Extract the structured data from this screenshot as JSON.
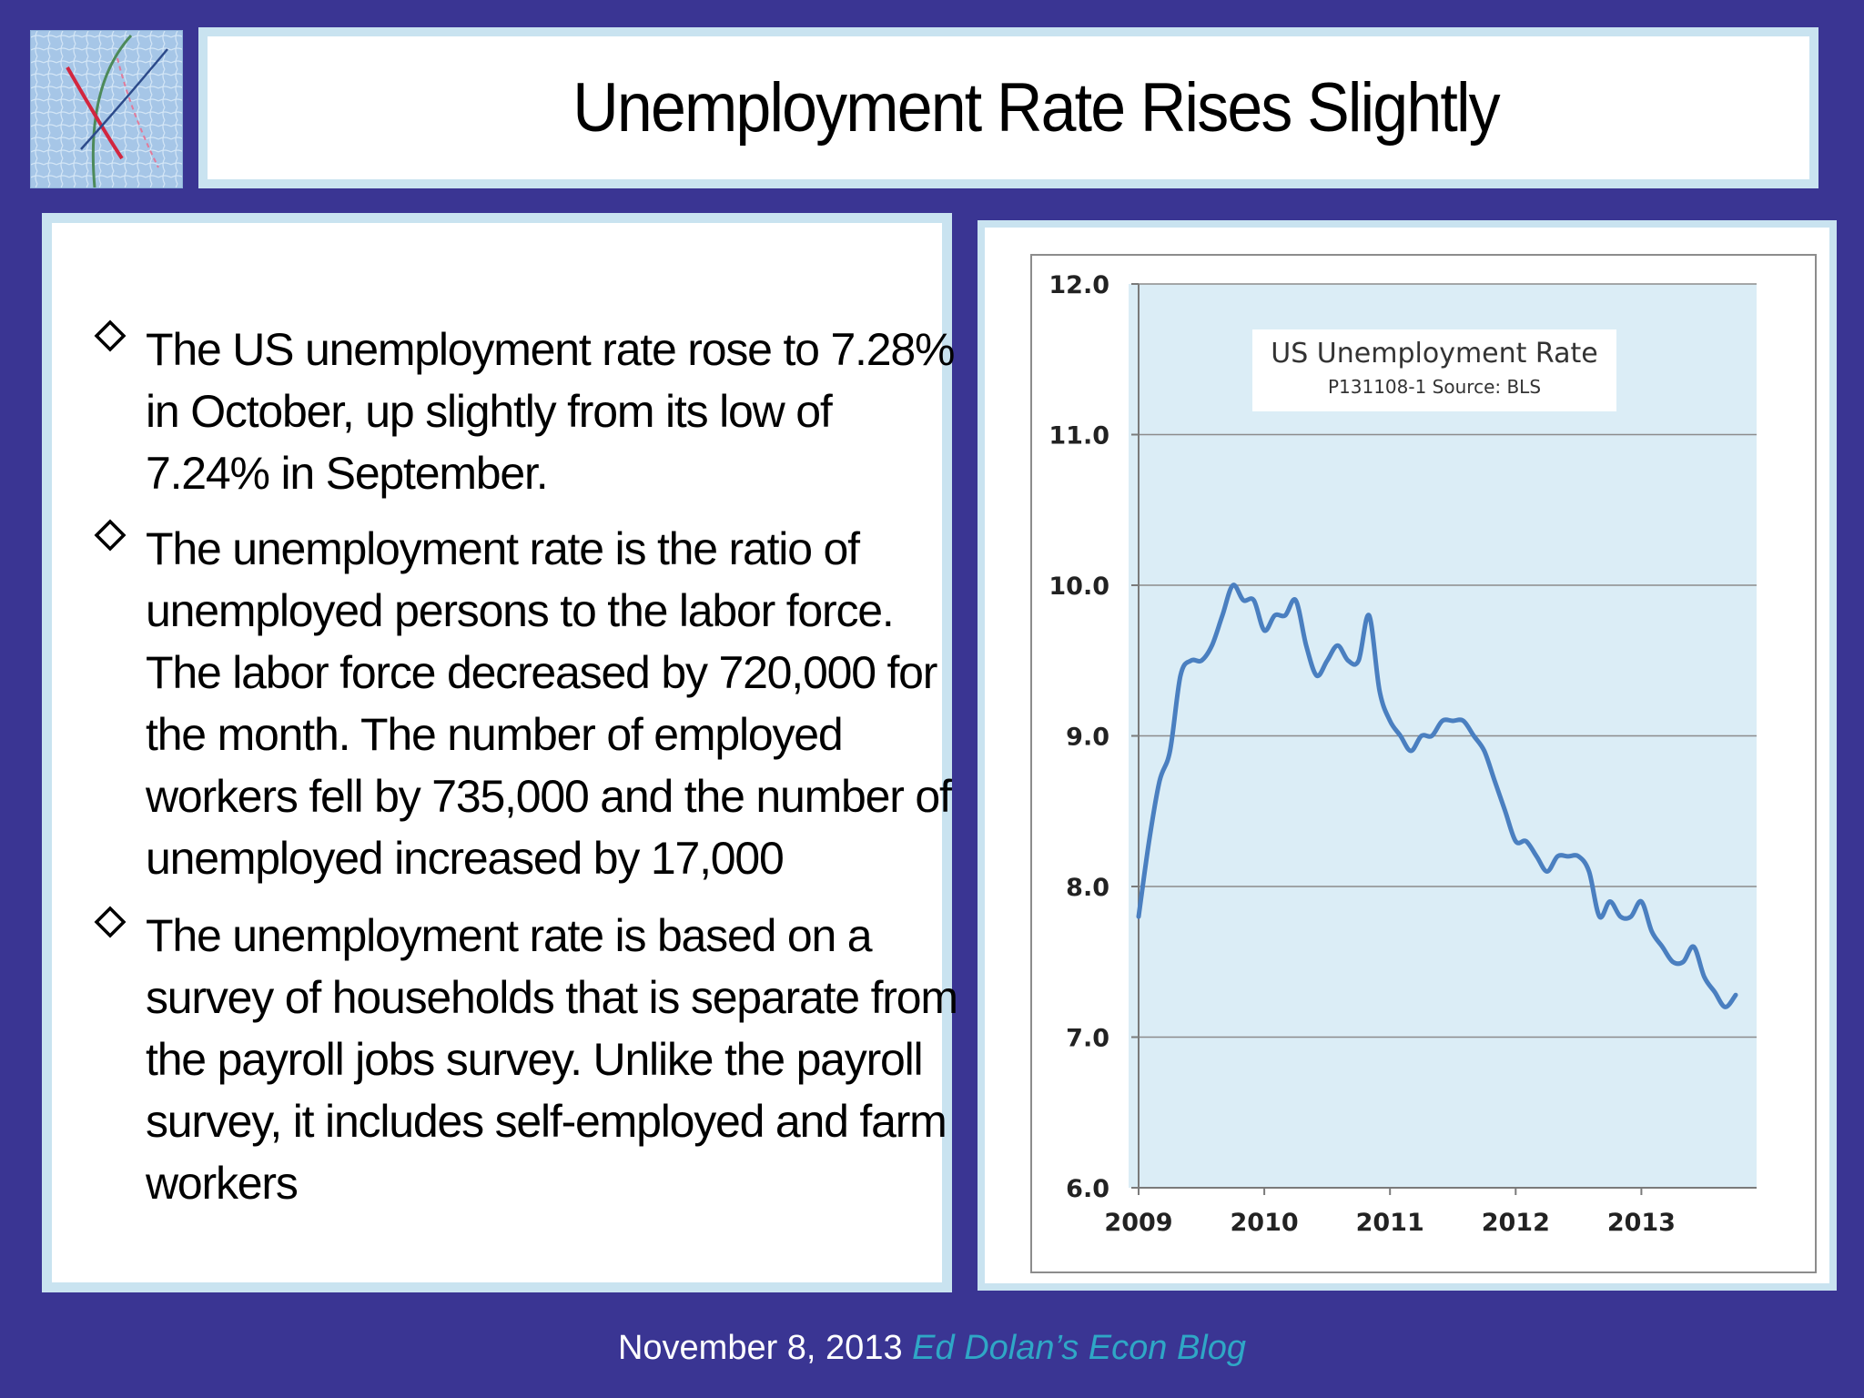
{
  "slide": {
    "title": "Unemployment Rate Rises Slightly",
    "logo_icon": "economics-chart-logo",
    "bullet_icon": "diamond-bullet-icon",
    "bullets": [
      {
        "text": "The US unemployment rate rose to 7.28% in October, up slightly from its low of 7.24% in September."
      },
      {
        "text": "The unemployment rate is the ratio of unemployed persons to the labor force. The labor force decreased by 720,000 for the month. The number of employed workers fell by 735,000 and the number of unemployed increased by 17,000"
      },
      {
        "text": "The unemployment rate is based on a survey of households that is separate from the payroll jobs survey. Unlike the payroll survey, it includes self-employed and farm workers"
      }
    ],
    "footer": {
      "date": "November 8, 2013",
      "blog": "Ed Dolan’s Econ Blog"
    }
  },
  "colors": {
    "background": "#3a3593",
    "panel_border": "#c9e3f0",
    "plot_area": "#dbedf6",
    "line": "#4a7fc0",
    "footer_blog": "#2fa7c6"
  },
  "chart_data": {
    "type": "line",
    "title": "US Unemployment  Rate",
    "subtitle": "P131108-1 Source: BLS",
    "legend_position": "top-center inside plot",
    "grid": true,
    "ylim": [
      6.0,
      12.0
    ],
    "yticks": [
      "6.0",
      "7.0",
      "8.0",
      "9.0",
      "10.0",
      "11.0",
      "12.0"
    ],
    "xlim": [
      2009.0,
      2013.9167
    ],
    "xticks": [
      "2009",
      "2010",
      "2011",
      "2012",
      "2013"
    ],
    "series": [
      {
        "name": "US Unemployment Rate",
        "x": [
          2009.0,
          2009.0833,
          2009.1667,
          2009.25,
          2009.3333,
          2009.4167,
          2009.5,
          2009.5833,
          2009.6667,
          2009.75,
          2009.8333,
          2009.9167,
          2010.0,
          2010.0833,
          2010.1667,
          2010.25,
          2010.3333,
          2010.4167,
          2010.5,
          2010.5833,
          2010.6667,
          2010.75,
          2010.8333,
          2010.9167,
          2011.0,
          2011.0833,
          2011.1667,
          2011.25,
          2011.3333,
          2011.4167,
          2011.5,
          2011.5833,
          2011.6667,
          2011.75,
          2011.8333,
          2011.9167,
          2012.0,
          2012.0833,
          2012.1667,
          2012.25,
          2012.3333,
          2012.4167,
          2012.5,
          2012.5833,
          2012.6667,
          2012.75,
          2012.8333,
          2012.9167,
          2013.0,
          2013.0833,
          2013.1667,
          2013.25,
          2013.3333,
          2013.4167,
          2013.5,
          2013.5833,
          2013.6667,
          2013.75
        ],
        "values": [
          7.8,
          8.3,
          8.7,
          8.9,
          9.4,
          9.5,
          9.5,
          9.6,
          9.8,
          10.0,
          9.9,
          9.9,
          9.7,
          9.8,
          9.8,
          9.9,
          9.6,
          9.4,
          9.5,
          9.6,
          9.5,
          9.5,
          9.8,
          9.3,
          9.1,
          9.0,
          8.9,
          9.0,
          9.0,
          9.1,
          9.1,
          9.1,
          9.0,
          8.9,
          8.7,
          8.5,
          8.3,
          8.3,
          8.2,
          8.1,
          8.2,
          8.2,
          8.2,
          8.1,
          7.8,
          7.9,
          7.8,
          7.8,
          7.9,
          7.7,
          7.6,
          7.5,
          7.5,
          7.6,
          7.4,
          7.3,
          7.2,
          7.28
        ]
      }
    ]
  }
}
